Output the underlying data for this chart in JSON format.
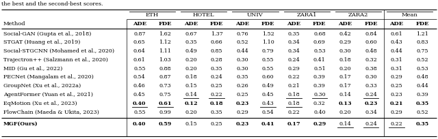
{
  "title_text": "the best and the second-best scores.",
  "col_groups": [
    "ETH",
    "HOTEL",
    "UNIV",
    "ZARA1",
    "ZARA2",
    "Mean"
  ],
  "methods": [
    "Social-GAN (Gupta et al., 2018)",
    "STGAT (Huang et al., 2019)",
    "Social-STGCNN (Mohamed et al., 2020)",
    "Trajectron++ (Salzmann et al., 2020)",
    "MID (Gu et al., 2022)",
    "PECNet (Mangalam et al., 2020)",
    "GroupNet (Xu et al., 2022a)",
    "AgentFormer (Yuan et al., 2021)",
    "EqMotion (Xu et al., 2023)",
    "FlowChain (Maeda & Ukita, 2023)",
    "MGF(Ours)"
  ],
  "data": [
    [
      "0.87",
      "1.62",
      "0.67",
      "1.37",
      "0.76",
      "1.52",
      "0.35",
      "0.68",
      "0.42",
      "0.84",
      "0.61",
      "1.21"
    ],
    [
      "0.65",
      "1.12",
      "0.35",
      "0.66",
      "0.52",
      "1.10",
      "0.34",
      "0.69",
      "0.29",
      "0.60",
      "0.43",
      "0.83"
    ],
    [
      "0.64",
      "1.11",
      "0.49",
      "0.85",
      "0.44",
      "0.79",
      "0.34",
      "0.53",
      "0.30",
      "0.48",
      "0.44",
      "0.75"
    ],
    [
      "0.61",
      "1.03",
      "0.20",
      "0.28",
      "0.30",
      "0.55",
      "0.24",
      "0.41",
      "0.18",
      "0.32",
      "0.31",
      "0.52"
    ],
    [
      "0.55",
      "0.88",
      "0.20",
      "0.35",
      "0.30",
      "0.55",
      "0.29",
      "0.51",
      "0.20",
      "0.38",
      "0.31",
      "0.53"
    ],
    [
      "0.54",
      "0.87",
      "0.18",
      "0.24",
      "0.35",
      "0.60",
      "0.22",
      "0.39",
      "0.17",
      "0.30",
      "0.29",
      "0.48"
    ],
    [
      "0.46",
      "0.73",
      "0.15",
      "0.25",
      "0.26",
      "0.49",
      "0.21",
      "0.39",
      "0.17",
      "0.33",
      "0.25",
      "0.44"
    ],
    [
      "0.45",
      "0.75",
      "0.14",
      "0.22",
      "0.25",
      "0.45",
      "0.18",
      "0.30",
      "0.14",
      "0.24",
      "0.23",
      "0.39"
    ],
    [
      "0.40",
      "0.61",
      "0.12",
      "0.18",
      "0.23",
      "0.43",
      "0.18",
      "0.32",
      "0.13",
      "0.23",
      "0.21",
      "0.35"
    ],
    [
      "0.55",
      "0.99",
      "0.20",
      "0.35",
      "0.29",
      "0.54",
      "0.22",
      "0.40",
      "0.20",
      "0.34",
      "0.29",
      "0.52"
    ],
    [
      "0.40",
      "0.59",
      "0.15",
      "0.25",
      "0.23",
      "0.41",
      "0.17",
      "0.29",
      "0.14",
      "0.24",
      "0.22",
      "0.35"
    ]
  ],
  "bold_cells": [
    [
      false,
      false,
      false,
      false,
      false,
      false,
      false,
      false,
      false,
      false,
      false,
      false
    ],
    [
      false,
      false,
      false,
      false,
      false,
      false,
      false,
      false,
      false,
      false,
      false,
      false
    ],
    [
      false,
      false,
      false,
      false,
      false,
      false,
      false,
      false,
      false,
      false,
      false,
      false
    ],
    [
      false,
      false,
      false,
      false,
      false,
      false,
      false,
      false,
      false,
      false,
      false,
      false
    ],
    [
      false,
      false,
      false,
      false,
      false,
      false,
      false,
      false,
      false,
      false,
      false,
      false
    ],
    [
      false,
      false,
      false,
      false,
      false,
      false,
      false,
      false,
      false,
      false,
      false,
      false
    ],
    [
      false,
      false,
      false,
      false,
      false,
      false,
      false,
      false,
      false,
      false,
      false,
      false
    ],
    [
      false,
      false,
      false,
      false,
      false,
      false,
      false,
      false,
      false,
      false,
      false,
      false
    ],
    [
      true,
      true,
      true,
      true,
      true,
      false,
      false,
      false,
      true,
      true,
      true,
      true
    ],
    [
      false,
      false,
      false,
      false,
      false,
      false,
      false,
      false,
      false,
      false,
      false,
      false
    ],
    [
      true,
      true,
      false,
      false,
      true,
      true,
      true,
      true,
      false,
      false,
      false,
      true
    ]
  ],
  "underline_cells": [
    [
      false,
      false,
      false,
      false,
      false,
      false,
      false,
      false,
      false,
      false,
      false,
      false
    ],
    [
      false,
      false,
      false,
      false,
      false,
      false,
      false,
      false,
      false,
      false,
      false,
      false
    ],
    [
      false,
      false,
      false,
      false,
      false,
      false,
      false,
      false,
      false,
      false,
      false,
      false
    ],
    [
      false,
      false,
      false,
      false,
      false,
      false,
      false,
      false,
      false,
      false,
      false,
      false
    ],
    [
      false,
      false,
      false,
      false,
      false,
      false,
      false,
      false,
      false,
      false,
      false,
      false
    ],
    [
      false,
      false,
      false,
      false,
      false,
      false,
      false,
      false,
      false,
      false,
      false,
      false
    ],
    [
      false,
      false,
      false,
      false,
      false,
      false,
      false,
      false,
      false,
      false,
      false,
      false
    ],
    [
      false,
      false,
      true,
      true,
      false,
      false,
      true,
      true,
      false,
      true,
      false,
      false
    ],
    [
      true,
      true,
      false,
      false,
      false,
      true,
      true,
      false,
      false,
      false,
      false,
      false
    ],
    [
      false,
      false,
      false,
      false,
      false,
      false,
      false,
      false,
      false,
      false,
      false,
      false
    ],
    [
      false,
      false,
      false,
      false,
      false,
      false,
      false,
      false,
      true,
      true,
      true,
      false
    ]
  ],
  "font_size": 5.8,
  "header_font_size": 6.0,
  "method_font_size": 5.8
}
